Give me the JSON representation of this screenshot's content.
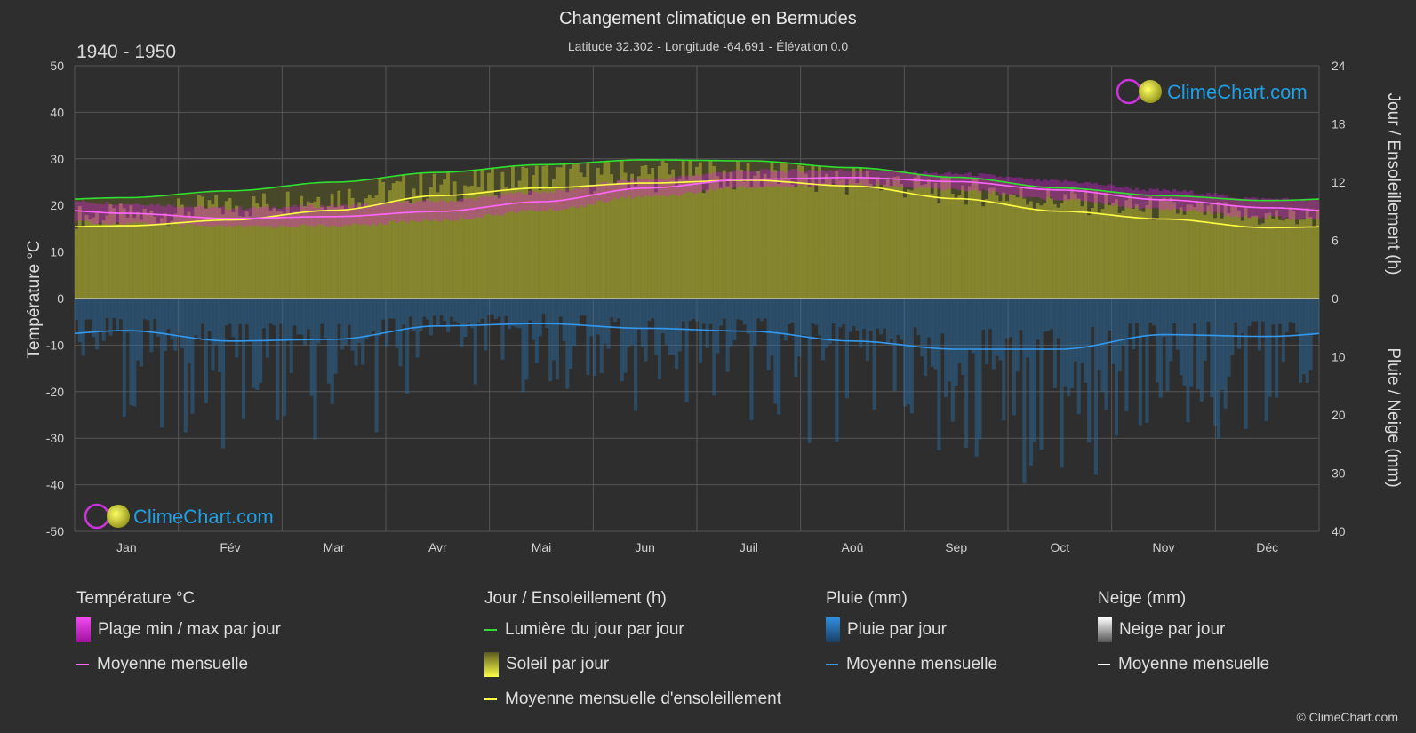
{
  "header": {
    "title": "Changement climatique en Bermudes",
    "subtitle": "Latitude 32.302 - Longitude -64.691 - Élévation 0.0",
    "period": "1940 - 1950"
  },
  "brand": {
    "name": "ClimeChart.com",
    "copyright": "© ClimeChart.com"
  },
  "colors": {
    "background": "#2e2e2e",
    "temp_range": "#e020e0",
    "temp_mean": "#ff66ff",
    "daylight": "#30e030",
    "sunshine_fill": "#b8b832",
    "sunshine_mean": "#ffff44",
    "rain_fill": "#2a6ea8",
    "rain_mean": "#3399ee",
    "snow_mean": "#ffffff",
    "brand_blue": "#1ea0e6"
  },
  "chart_data": {
    "type": "line",
    "months": [
      "Jan",
      "Fév",
      "Mar",
      "Avr",
      "Mai",
      "Jun",
      "Juil",
      "Aoû",
      "Sep",
      "Oct",
      "Nov",
      "Déc"
    ],
    "left_axis": {
      "label": "Température °C",
      "min": -50,
      "max": 50,
      "ticks": [
        50,
        40,
        30,
        20,
        10,
        0,
        -10,
        -20,
        -30,
        -40,
        -50
      ]
    },
    "right_axis_top": {
      "label": "Jour / Ensoleillement (h)",
      "min": 0,
      "max": 24,
      "ticks": [
        24,
        18,
        12,
        6,
        0
      ]
    },
    "right_axis_bottom": {
      "label": "Pluie / Neige (mm)",
      "min": 0,
      "max": 40,
      "ticks": [
        0,
        10,
        20,
        30,
        40
      ]
    },
    "grid": true,
    "series": [
      {
        "name": "Lumière du jour par jour",
        "axis": "hours",
        "values": [
          10.4,
          11.1,
          12.0,
          13.0,
          13.8,
          14.3,
          14.2,
          13.5,
          12.5,
          11.4,
          10.6,
          10.1
        ]
      },
      {
        "name": "Moyenne mensuelle d'ensoleillement",
        "axis": "hours",
        "values": [
          7.5,
          8.1,
          9.1,
          10.6,
          11.4,
          11.9,
          12.2,
          11.6,
          10.3,
          9.0,
          8.2,
          7.3
        ]
      },
      {
        "name": "Soleil par jour",
        "axis": "hours",
        "values": [
          8.5,
          9.5,
          10.5,
          11.5,
          12.5,
          12.8,
          12.8,
          12.3,
          11.3,
          10.2,
          9.2,
          8.4
        ]
      },
      {
        "name": "Moyenne mensuelle",
        "group": "Température °C",
        "axis": "temp",
        "values": [
          18.3,
          17.2,
          17.6,
          18.7,
          20.8,
          23.7,
          25.6,
          26.0,
          25.1,
          23.3,
          21.2,
          19.5
        ]
      },
      {
        "name": "Plage min / max par jour",
        "axis": "temp",
        "min": [
          16.5,
          15.8,
          16.0,
          17.2,
          19.3,
          22.3,
          24.3,
          24.8,
          23.8,
          21.8,
          19.6,
          17.8
        ],
        "max": [
          20.0,
          19.0,
          19.5,
          20.5,
          22.5,
          25.2,
          27.0,
          27.2,
          26.4,
          24.8,
          22.8,
          21.0
        ]
      },
      {
        "name": "Moyenne mensuelle",
        "group": "Pluie (mm)",
        "axis": "mm",
        "values": [
          5.5,
          7.3,
          7.0,
          4.7,
          4.3,
          5.1,
          5.6,
          7.3,
          8.7,
          8.7,
          6.2,
          6.5
        ]
      },
      {
        "name": "Moyenne mensuelle",
        "group": "Neige (mm)",
        "axis": "mm",
        "values": [
          0,
          0,
          0,
          0,
          0,
          0,
          0,
          0,
          0,
          0,
          0,
          0
        ]
      }
    ]
  },
  "legend": {
    "groups": [
      {
        "title": "Température °C",
        "items": [
          "Plage min / max par jour",
          "Moyenne mensuelle"
        ]
      },
      {
        "title": "Jour / Ensoleillement (h)",
        "items": [
          "Lumière du jour par jour",
          "Soleil par jour",
          "Moyenne mensuelle d'ensoleillement"
        ]
      },
      {
        "title": "Pluie (mm)",
        "items": [
          "Pluie par jour",
          "Moyenne mensuelle"
        ]
      },
      {
        "title": "Neige (mm)",
        "items": [
          "Neige par jour",
          "Moyenne mensuelle"
        ]
      }
    ]
  }
}
